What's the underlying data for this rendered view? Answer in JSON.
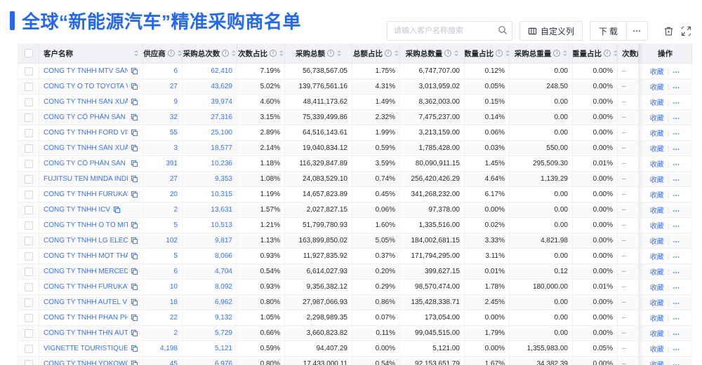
{
  "page": {
    "title": "全球“新能源汽车”精准采购商名单"
  },
  "toolbar": {
    "search_placeholder": "请输入客户名称搜索",
    "customize_columns": "自定义列",
    "download": "下载",
    "more": "⋯"
  },
  "table": {
    "columns": [
      {
        "key": "checkbox",
        "label": "",
        "info": false,
        "sort": false
      },
      {
        "key": "name",
        "label": "客户名称",
        "info": false,
        "sort": true
      },
      {
        "key": "supplier",
        "label": "供应商",
        "info": true,
        "sort": true
      },
      {
        "key": "times",
        "label": "采购总次数",
        "info": true,
        "sort": true
      },
      {
        "key": "times_pct",
        "label": "次数占比",
        "info": true,
        "sort": true
      },
      {
        "key": "amount",
        "label": "采购总额",
        "info": true,
        "sort": true
      },
      {
        "key": "amount_pct",
        "label": "总额占比",
        "info": true,
        "sort": true
      },
      {
        "key": "qty",
        "label": "采购总数量",
        "info": true,
        "sort": true
      },
      {
        "key": "qty_pct",
        "label": "数量占比",
        "info": true,
        "sort": true
      },
      {
        "key": "weight",
        "label": "采购总重量",
        "info": true,
        "sort": true
      },
      {
        "key": "weight_pct",
        "label": "重量占比",
        "info": true,
        "sort": true
      },
      {
        "key": "trend",
        "label": "次数趋势",
        "info": false,
        "sort": false
      },
      {
        "key": "ops",
        "label": "操作",
        "info": false,
        "sort": false
      }
    ],
    "ops_labels": {
      "favorite": "收藏",
      "more": "⋯"
    },
    "trend_placeholder": "–",
    "rows": [
      {
        "name": "CÔNG TY TNHH MTV SẢN XUẤ...",
        "supplier": "6",
        "times": "62,410",
        "times_pct": "7.19%",
        "amount": "56,738,567.05",
        "amount_pct": "1.75%",
        "qty": "6,747,707.00",
        "qty_pct": "0.12%",
        "weight": "0.00",
        "weight_pct": "0.00%"
      },
      {
        "name": "CÔNG TY Ô TÔ TOYOTA VIỆT ...",
        "supplier": "27",
        "times": "43,629",
        "times_pct": "5.02%",
        "amount": "139,776,561.16",
        "amount_pct": "4.31%",
        "qty": "3,013,959.02",
        "qty_pct": "0.05%",
        "weight": "248.50",
        "weight_pct": "0.00%"
      },
      {
        "name": "CÔNG TY TNHH SẢN XUẤT VÀ ...",
        "supplier": "9",
        "times": "39,974",
        "times_pct": "4.60%",
        "amount": "48,411,173.62",
        "amount_pct": "1.49%",
        "qty": "8,362,003.00",
        "qty_pct": "0.15%",
        "weight": "0.00",
        "weight_pct": "0.00%"
      },
      {
        "name": "CÔNG TY CỔ PHẦN SẢN XUẤT...",
        "supplier": "32",
        "times": "27,316",
        "times_pct": "3.15%",
        "amount": "75,339,499.86",
        "amount_pct": "2.32%",
        "qty": "7,475,237.00",
        "qty_pct": "0.14%",
        "weight": "0.00",
        "weight_pct": "0.00%"
      },
      {
        "name": "CÔNG TY TNHH FORD VIỆT NAM",
        "supplier": "55",
        "times": "25,100",
        "times_pct": "2.89%",
        "amount": "64,516,143.61",
        "amount_pct": "1.99%",
        "qty": "3,213,159.00",
        "qty_pct": "0.06%",
        "weight": "0.00",
        "weight_pct": "0.00%"
      },
      {
        "name": "CÔNG TY TNHH SẢN XUẤT VÀ ...",
        "supplier": "3",
        "times": "18,577",
        "times_pct": "2.14%",
        "amount": "19,040,834.12",
        "amount_pct": "0.59%",
        "qty": "1,785,428.00",
        "qty_pct": "0.03%",
        "weight": "550.00",
        "weight_pct": "0.00%"
      },
      {
        "name": "CÔNG TY CỔ PHẦN SẢN XUẤT...",
        "supplier": "391",
        "times": "10,236",
        "times_pct": "1.18%",
        "amount": "116,329,847.89",
        "amount_pct": "3.59%",
        "qty": "80,090,911.15",
        "qty_pct": "1.45%",
        "weight": "295,509.30",
        "weight_pct": "0.01%"
      },
      {
        "name": "FUJITSU TEN MINDA INDIA PVT...",
        "supplier": "27",
        "times": "9,353",
        "times_pct": "1.08%",
        "amount": "24,083,529.10",
        "amount_pct": "0.74%",
        "qty": "256,420,426.29",
        "qty_pct": "4.64%",
        "weight": "1,139.29",
        "weight_pct": "0.00%"
      },
      {
        "name": "CÔNG TY TNHH FURUKAWA A...",
        "supplier": "20",
        "times": "10,315",
        "times_pct": "1.19%",
        "amount": "14,657,823.89",
        "amount_pct": "0.45%",
        "qty": "341,268,232.00",
        "qty_pct": "6.17%",
        "weight": "0.00",
        "weight_pct": "0.00%"
      },
      {
        "name": "CÔNG TY TNHH ICV",
        "supplier": "2",
        "times": "13,631",
        "times_pct": "1.57%",
        "amount": "2,027,827.15",
        "amount_pct": "0.06%",
        "qty": "97,378.00",
        "qty_pct": "0.00%",
        "weight": "0.00",
        "weight_pct": "0.00%"
      },
      {
        "name": "CÔNG TY TNHH Ô TÔ MITSUBI...",
        "supplier": "5",
        "times": "10,513",
        "times_pct": "1.21%",
        "amount": "51,799,780.93",
        "amount_pct": "1.60%",
        "qty": "1,335,516.00",
        "qty_pct": "0.02%",
        "weight": "0.00",
        "weight_pct": "0.00%"
      },
      {
        "name": "CÔNG TY TNHH LG ELECTRON...",
        "supplier": "102",
        "times": "9,817",
        "times_pct": "1.13%",
        "amount": "163,899,850.02",
        "amount_pct": "5.05%",
        "qty": "184,002,681.15",
        "qty_pct": "3.33%",
        "weight": "4,821.98",
        "weight_pct": "0.00%"
      },
      {
        "name": "CÔNG TY TNHH MỘT THÀNH V...",
        "supplier": "5",
        "times": "8,066",
        "times_pct": "0.93%",
        "amount": "11,927,835.92",
        "amount_pct": "0.37%",
        "qty": "171,794,295.00",
        "qty_pct": "3.11%",
        "weight": "0.00",
        "weight_pct": "0.00%"
      },
      {
        "name": "CÔNG TY TNHH MERCEDES–B...",
        "supplier": "6",
        "times": "4,704",
        "times_pct": "0.54%",
        "amount": "6,614,027.93",
        "amount_pct": "0.20%",
        "qty": "399,627.15",
        "qty_pct": "0.01%",
        "weight": "0.12",
        "weight_pct": "0.00%"
      },
      {
        "name": "CÔNG TY TNHH FURUKAWA A...",
        "supplier": "10",
        "times": "8,092",
        "times_pct": "0.93%",
        "amount": "9,356,382.12",
        "amount_pct": "0.29%",
        "qty": "98,570,474.00",
        "qty_pct": "1.78%",
        "weight": "180,000.00",
        "weight_pct": "0.01%"
      },
      {
        "name": "CÔNG TY TNHH AUTEL VIỆT N...",
        "supplier": "18",
        "times": "6,962",
        "times_pct": "0.80%",
        "amount": "27,987,066.93",
        "amount_pct": "0.86%",
        "qty": "135,428,338.71",
        "qty_pct": "2.45%",
        "weight": "0.00",
        "weight_pct": "0.00%"
      },
      {
        "name": "CÔNG TY TNHH PHÂN PHỐI T...",
        "supplier": "22",
        "times": "9,132",
        "times_pct": "1.05%",
        "amount": "2,298,989.35",
        "amount_pct": "0.07%",
        "qty": "173,054.00",
        "qty_pct": "0.00%",
        "weight": "0.00",
        "weight_pct": "0.00%"
      },
      {
        "name": "CÔNG TY TNHH THN AUTOPAR...",
        "supplier": "2",
        "times": "5,729",
        "times_pct": "0.66%",
        "amount": "3,660,823.82",
        "amount_pct": "0.11%",
        "qty": "99,045,515.00",
        "qty_pct": "1.79%",
        "weight": "0.00",
        "weight_pct": "0.00%"
      },
      {
        "name": "VIGNETTE TOURISTIQUE G UNI...",
        "supplier": "4,198",
        "times": "5,121",
        "times_pct": "0.59%",
        "amount": "94,407.29",
        "amount_pct": "0.00%",
        "qty": "5,121.00",
        "qty_pct": "0.00%",
        "weight": "1,355,983.00",
        "weight_pct": "0.05%"
      },
      {
        "name": "CÔNG TY TNHH YOKOWO VIỆT...",
        "supplier": "45",
        "times": "6,976",
        "times_pct": "0.80%",
        "amount": "17,433,000.11",
        "amount_pct": "0.54%",
        "qty": "92,153,651.79",
        "qty_pct": "1.67%",
        "weight": "34,382.39",
        "weight_pct": "0.00%"
      }
    ]
  }
}
